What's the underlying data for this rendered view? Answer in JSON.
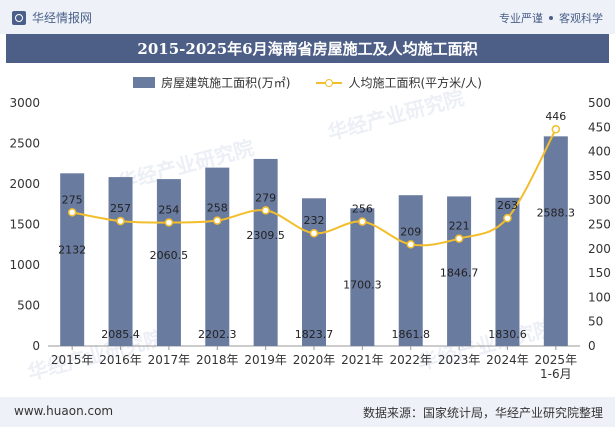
{
  "header": {
    "brand": "华经情报网",
    "tag1": "专业严谨",
    "tag2": "客观科学"
  },
  "title": "2015-2025年6月海南省房屋施工及人均施工面积",
  "legend": {
    "bar": "房屋建筑施工面积(万㎡)",
    "line": "人均施工面积(平方米/人)"
  },
  "footer": {
    "left": "www.huaon.com",
    "right": "数据来源：国家统计局，华经产业研究院整理"
  },
  "watermark": "华经产业研究院",
  "colors": {
    "bar": "#6a7ba0",
    "line": "#f2be2b",
    "title_bg": "#4d5f87"
  },
  "chart_data": {
    "type": "bar",
    "categories": [
      "2015年",
      "2016年",
      "2017年",
      "2018年",
      "2019年",
      "2020年",
      "2021年",
      "2022年",
      "2023年",
      "2024年",
      "2025年\n1-6月"
    ],
    "series": [
      {
        "name": "房屋建筑施工面积(万㎡)",
        "type": "bar",
        "axis": "left",
        "values": [
          2132,
          2085.4,
          2060.5,
          2202.3,
          2309.5,
          1823.7,
          1700.3,
          1861.8,
          1846.7,
          1830.6,
          2588.3
        ]
      },
      {
        "name": "人均施工面积(平方米/人)",
        "type": "line",
        "axis": "right",
        "values": [
          275,
          257,
          254,
          258,
          279,
          232,
          256,
          209,
          221,
          263,
          446
        ]
      }
    ],
    "y_left": {
      "min": 0,
      "max": 3000,
      "ticks": [
        0,
        500,
        1000,
        1500,
        2000,
        2500,
        3000
      ]
    },
    "y_right": {
      "min": 0,
      "max": 500,
      "ticks": [
        0,
        50,
        100,
        150,
        200,
        250,
        300,
        350,
        400,
        450,
        500
      ]
    },
    "grid": false,
    "legend_position": "top"
  }
}
